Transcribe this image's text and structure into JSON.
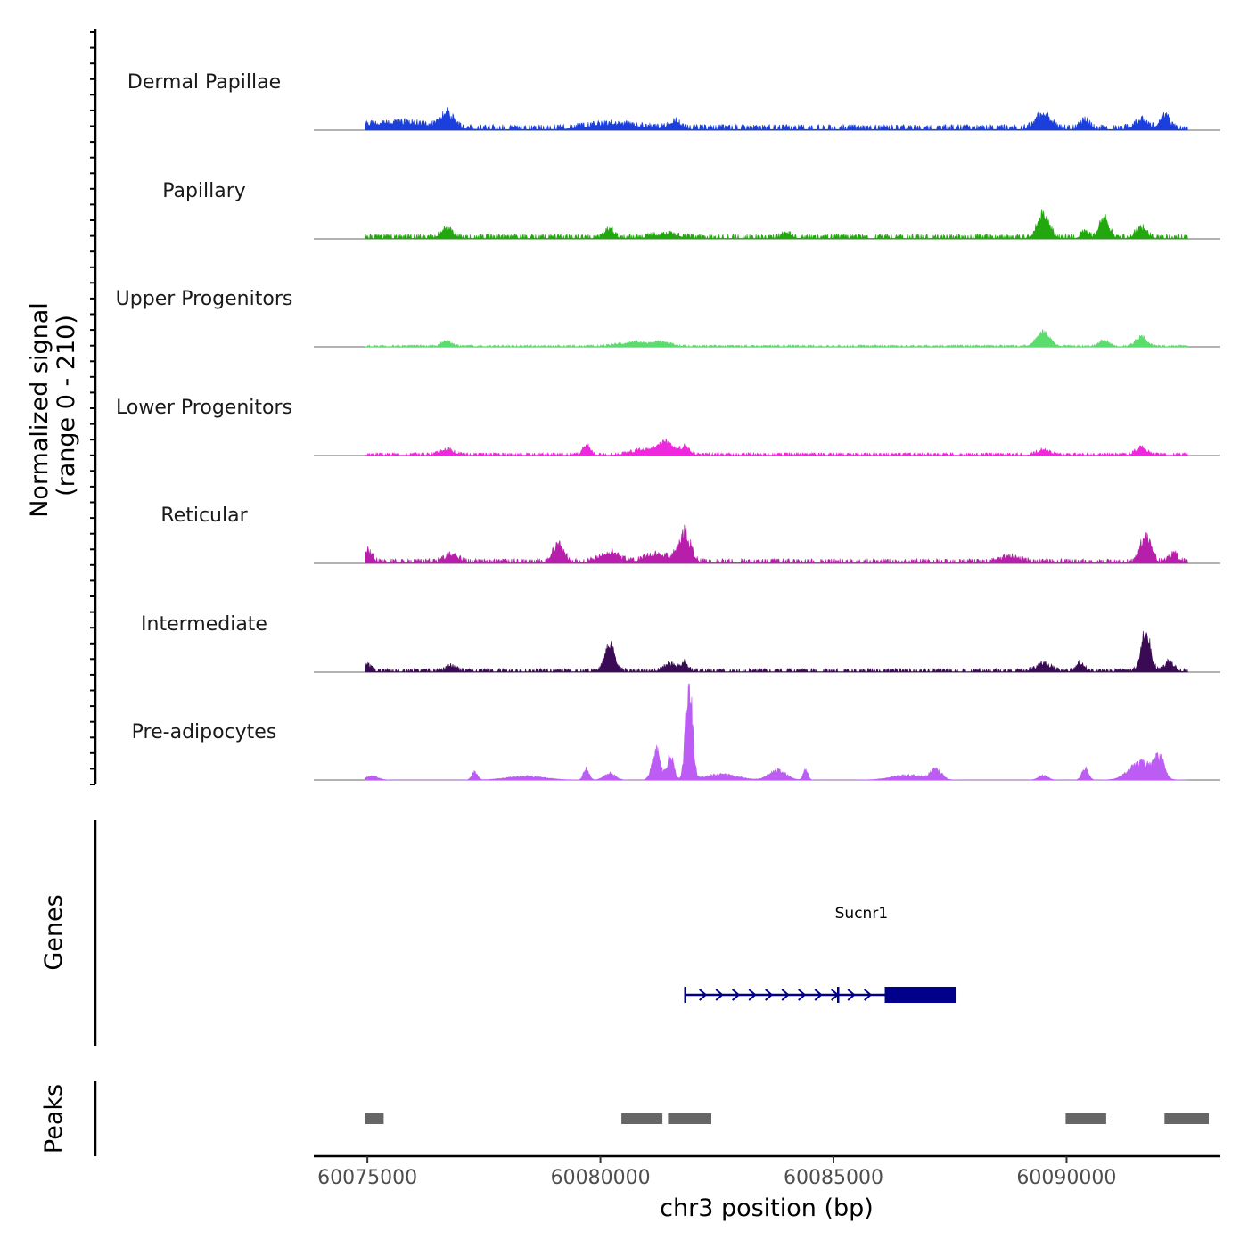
{
  "chart_data": {
    "type": "area",
    "title": "",
    "ylabel_line1": "Normalized signal",
    "ylabel_line2": "(range 0 - 210)",
    "y_range": [
      0,
      210
    ],
    "xlabel": "chr3 position (bp)",
    "x_range": [
      60073850,
      60093300
    ],
    "x_ticks": [
      {
        "value": 60075000,
        "label": "60075000"
      },
      {
        "value": 60080000,
        "label": "60080000"
      },
      {
        "value": 60085000,
        "label": "60085000"
      },
      {
        "value": 60090000,
        "label": "60090000"
      }
    ],
    "signal_range": [
      60074950,
      60092600
    ],
    "tracks": [
      {
        "name": "Dermal Papillae",
        "color": "#1a3fdc",
        "noise": 0.06,
        "peaks": [
          [
            60075600,
            700,
            0.06
          ],
          [
            60076700,
            130,
            0.14
          ],
          [
            60080300,
            500,
            0.05
          ],
          [
            60081600,
            130,
            0.07
          ],
          [
            60089500,
            150,
            0.16
          ],
          [
            60090400,
            100,
            0.08
          ],
          [
            60091600,
            130,
            0.09
          ],
          [
            60092100,
            110,
            0.13
          ]
        ]
      },
      {
        "name": "Papillary",
        "color": "#22a80e",
        "noise": 0.05,
        "peaks": [
          [
            60076700,
            120,
            0.09
          ],
          [
            60080200,
            90,
            0.08
          ],
          [
            60081400,
            250,
            0.04
          ],
          [
            60084000,
            90,
            0.05
          ],
          [
            60089500,
            120,
            0.25
          ],
          [
            60090400,
            80,
            0.06
          ],
          [
            60090800,
            100,
            0.19
          ],
          [
            60091600,
            110,
            0.11
          ]
        ]
      },
      {
        "name": "Upper Progenitors",
        "color": "#5ddc6e",
        "noise": 0.02,
        "peaks": [
          [
            60076700,
            110,
            0.05
          ],
          [
            60080700,
            300,
            0.04
          ],
          [
            60081300,
            200,
            0.04
          ],
          [
            60089500,
            140,
            0.14
          ],
          [
            60090800,
            100,
            0.06
          ],
          [
            60091600,
            110,
            0.1
          ]
        ]
      },
      {
        "name": "Lower Progenitors",
        "color": "#ee28dc",
        "noise": 0.03,
        "peaks": [
          [
            60076700,
            150,
            0.05
          ],
          [
            60079700,
            80,
            0.09
          ],
          [
            60081000,
            300,
            0.05
          ],
          [
            60081400,
            140,
            0.12
          ],
          [
            60081800,
            100,
            0.08
          ],
          [
            60089500,
            130,
            0.05
          ],
          [
            60091600,
            110,
            0.07
          ]
        ]
      },
      {
        "name": "Reticular",
        "color": "#b61eab",
        "noise": 0.05,
        "peaks": [
          [
            60075000,
            100,
            0.12
          ],
          [
            60076800,
            150,
            0.07
          ],
          [
            60079100,
            120,
            0.18
          ],
          [
            60080200,
            200,
            0.1
          ],
          [
            60081200,
            250,
            0.08
          ],
          [
            60081800,
            130,
            0.3
          ],
          [
            60088800,
            200,
            0.05
          ],
          [
            60091700,
            110,
            0.28
          ],
          [
            60092300,
            100,
            0.08
          ]
        ]
      },
      {
        "name": "Intermediate",
        "color": "#3b0a55",
        "noise": 0.04,
        "peaks": [
          [
            60075000,
            70,
            0.07
          ],
          [
            60076800,
            100,
            0.05
          ],
          [
            60080200,
            100,
            0.28
          ],
          [
            60081500,
            140,
            0.07
          ],
          [
            60081800,
            80,
            0.08
          ],
          [
            60089500,
            160,
            0.07
          ],
          [
            60090300,
            80,
            0.08
          ],
          [
            60091700,
            100,
            0.38
          ],
          [
            60092200,
            100,
            0.1
          ]
        ]
      },
      {
        "name": "Pre-adipocytes",
        "color": "#bd5cf5",
        "noise": 0.0,
        "peaks": [
          [
            60075100,
            130,
            0.04
          ],
          [
            60077300,
            60,
            0.08
          ],
          [
            60078400,
            400,
            0.04
          ],
          [
            60079700,
            60,
            0.12
          ],
          [
            60080200,
            120,
            0.07
          ],
          [
            60081200,
            90,
            0.3
          ],
          [
            60081500,
            70,
            0.25
          ],
          [
            60081900,
            70,
            1.0
          ],
          [
            60082600,
            350,
            0.06
          ],
          [
            60083800,
            180,
            0.1
          ],
          [
            60084400,
            50,
            0.1
          ],
          [
            60086600,
            350,
            0.05
          ],
          [
            60087200,
            120,
            0.1
          ],
          [
            60089500,
            100,
            0.05
          ],
          [
            60090400,
            70,
            0.12
          ],
          [
            60091600,
            250,
            0.18
          ],
          [
            60092000,
            100,
            0.2
          ]
        ]
      }
    ],
    "genes_label": "Genes",
    "gene": {
      "name": "Sucnr1",
      "color": "#00008b",
      "start": 60081820,
      "end": 60087620,
      "strand": "+",
      "exons": [
        [
          60081820,
          60081880
        ],
        [
          60085100,
          60085160
        ],
        [
          60086100,
          60087620
        ]
      ],
      "label_pos": 60085600
    },
    "peaks_label": "Peaks",
    "peak_color": "#666666",
    "peak_regions": [
      [
        60074950,
        60075350
      ],
      [
        60080450,
        60081330
      ],
      [
        60081450,
        60082380
      ],
      [
        60089980,
        60090850
      ],
      [
        60092100,
        60093050
      ]
    ]
  }
}
